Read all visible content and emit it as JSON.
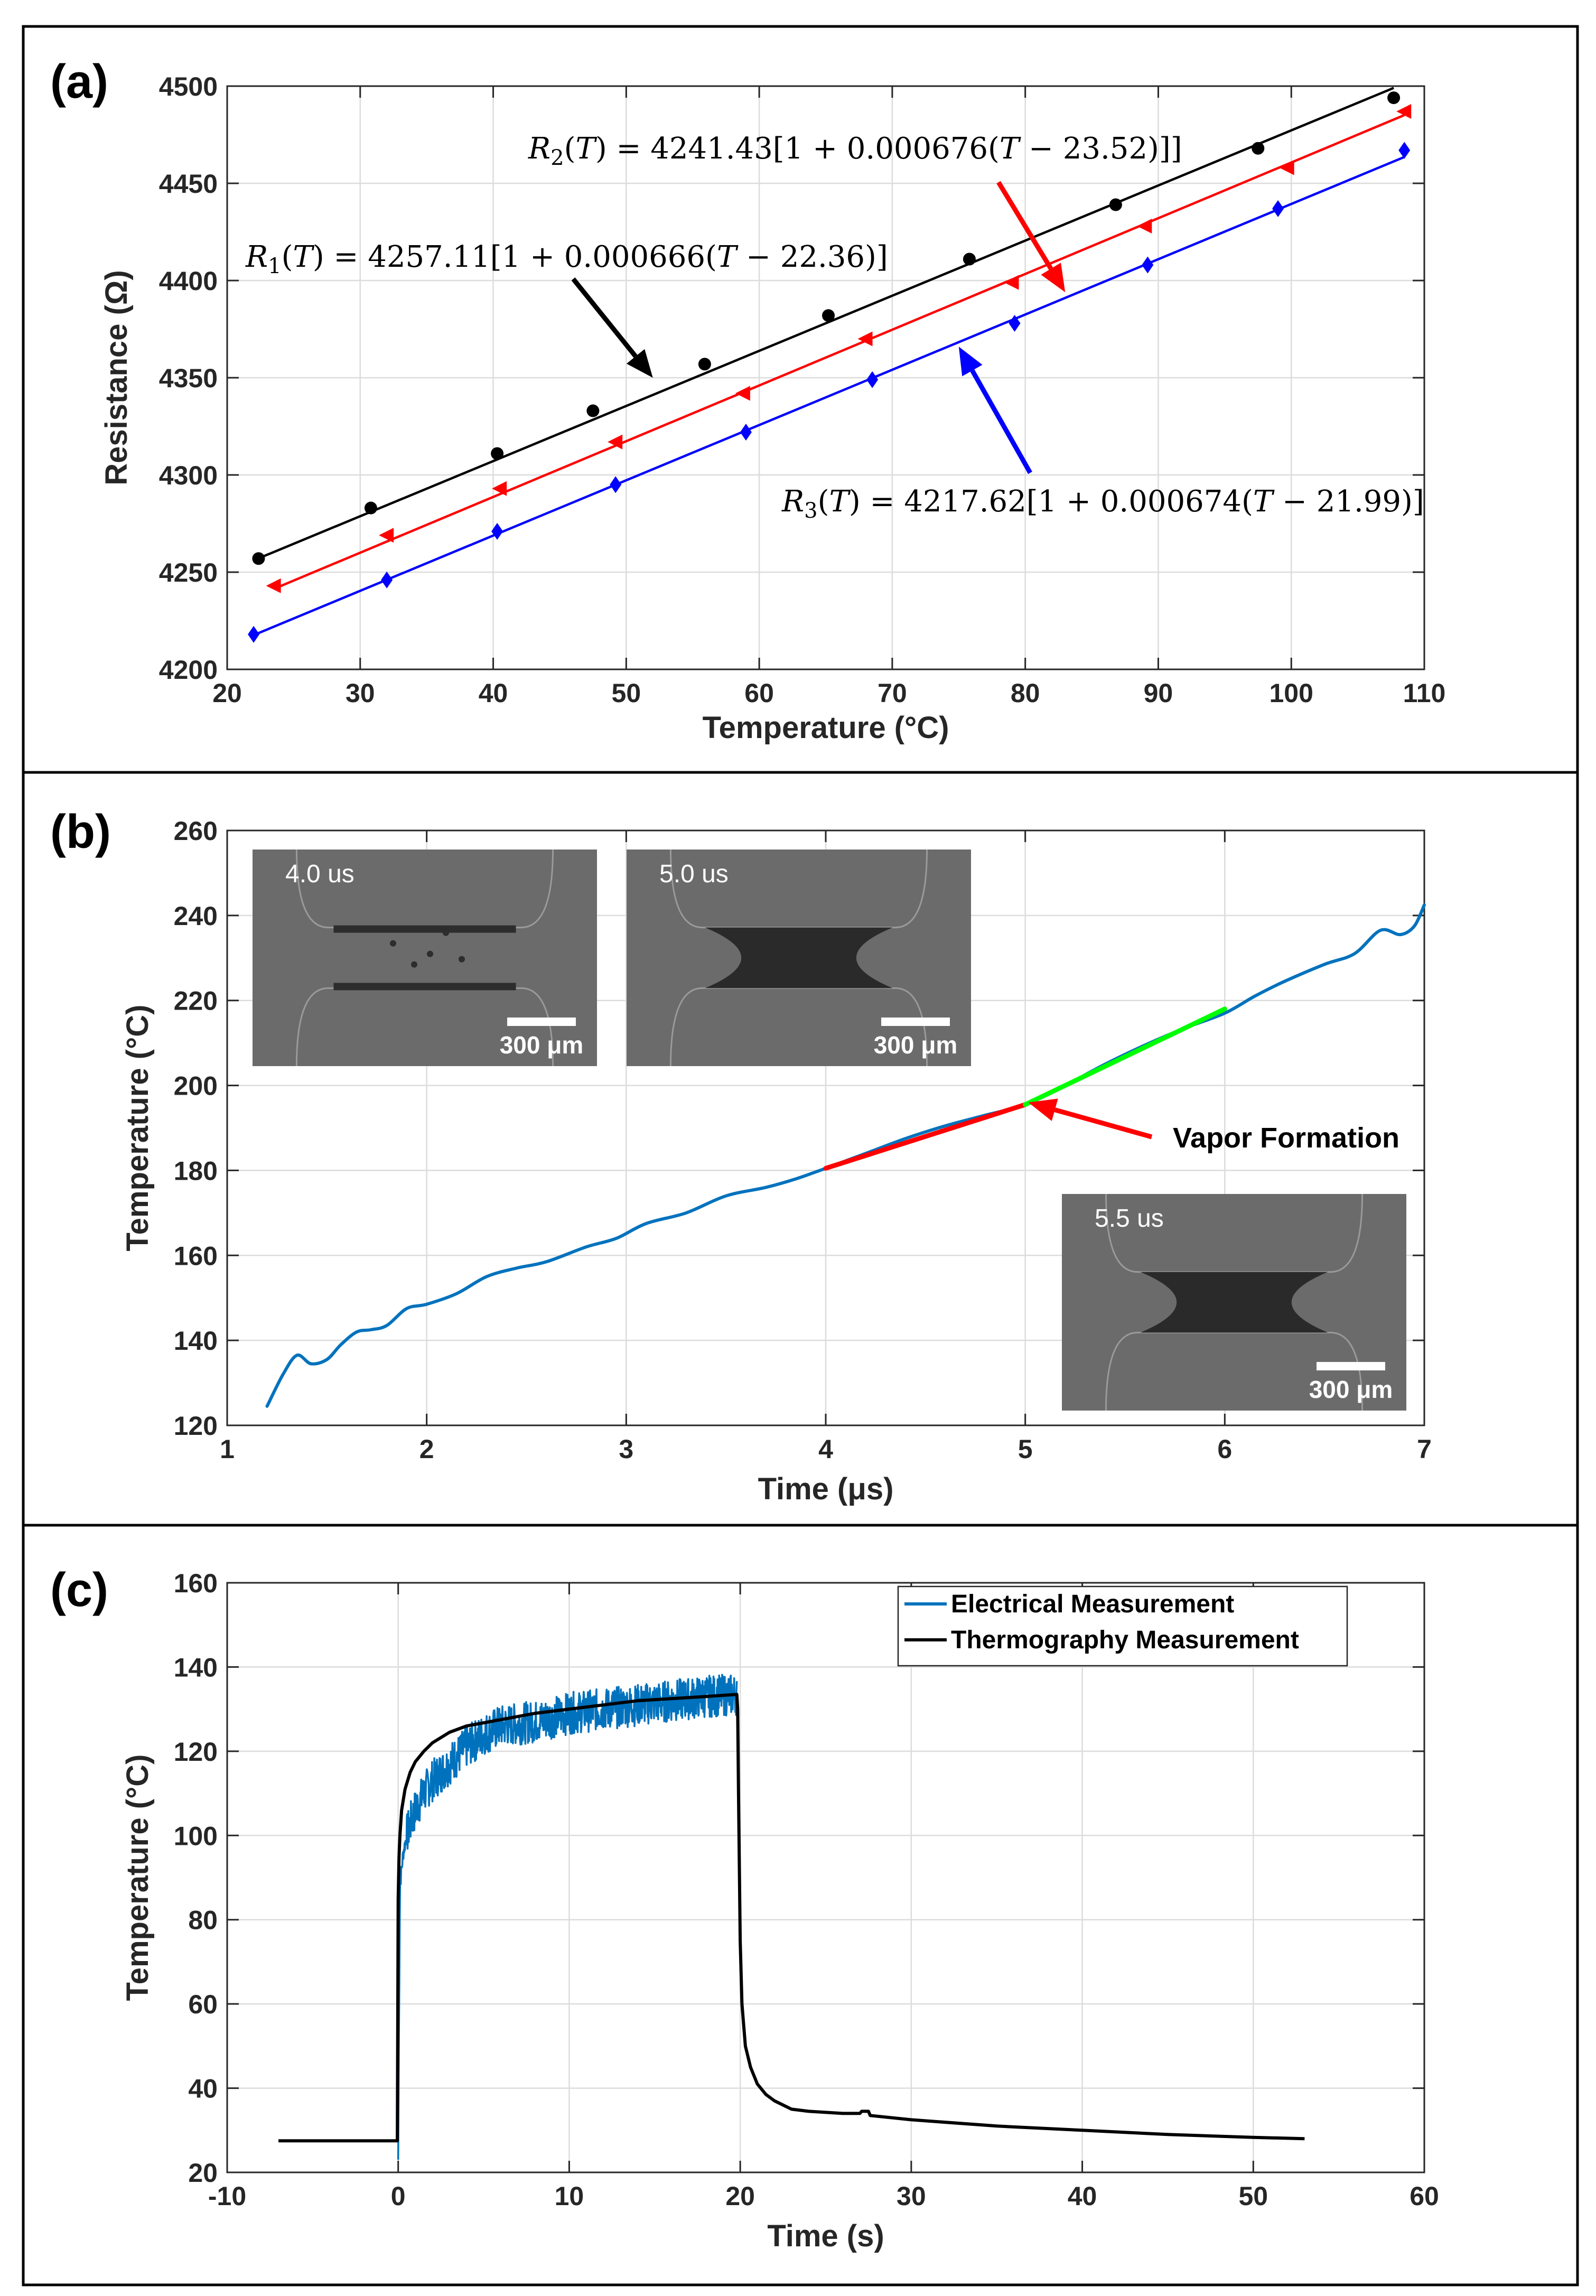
{
  "chart_data": [
    {
      "panel_label": "(a)",
      "type": "scatter",
      "xlabel": "Temperature (°C)",
      "ylabel": "Resistance (Ω)",
      "xlim": [
        20,
        110
      ],
      "ylim": [
        4200,
        4500
      ],
      "xticks": [
        20,
        30,
        40,
        50,
        60,
        70,
        80,
        90,
        100,
        110
      ],
      "yticks": [
        4200,
        4250,
        4300,
        4350,
        4400,
        4450,
        4500
      ],
      "grid": true,
      "series": [
        {
          "marker": "circle",
          "color": "#000000",
          "x": [
            22.36,
            30.8,
            40.3,
            47.5,
            55.9,
            65.2,
            75.8,
            86.8,
            97.5,
            107.7
          ],
          "y": [
            4257,
            4283,
            4311,
            4333,
            4357,
            4382,
            4411,
            4439,
            4468,
            4494
          ],
          "fit": {
            "a": 4257.11,
            "b": 0.000666,
            "t0": 22.36,
            "x_range": [
              22.36,
              107.7
            ]
          }
        },
        {
          "marker": "triangle-left",
          "color": "#ff0000",
          "x": [
            23.52,
            32.0,
            40.5,
            49.2,
            58.8,
            68.0,
            79.0,
            89.0,
            99.7,
            108.5
          ],
          "y": [
            4243,
            4269,
            4293,
            4317,
            4342,
            4370,
            4399,
            4428,
            4458,
            4487
          ],
          "fit": {
            "a": 4241.43,
            "b": 0.000676,
            "t0": 23.52,
            "x_range": [
              23.52,
              108.5
            ]
          }
        },
        {
          "marker": "diamond",
          "color": "#0000ff",
          "x": [
            21.99,
            32.0,
            40.3,
            49.2,
            59.0,
            68.5,
            79.2,
            89.2,
            99.0,
            108.5
          ],
          "y": [
            4218,
            4246,
            4271,
            4295,
            4322,
            4349,
            4378,
            4408,
            4437,
            4467
          ],
          "fit": {
            "a": 4217.62,
            "b": 0.000674,
            "t0": 21.99,
            "x_range": [
              21.99,
              108.5
            ]
          }
        }
      ],
      "annotations": [
        {
          "id": "r1",
          "color": "#000000",
          "parts": [
            "R",
            "1",
            "(",
            "T",
            ") = 4257.11[1 + 0.000666(",
            "T",
            " − 22.36)]"
          ],
          "points_to": [
            52,
            4350
          ]
        },
        {
          "id": "r2",
          "color": "#ff0000",
          "parts": [
            "R",
            "2",
            "(",
            "T",
            ") = 4241.43[1 + 0.000676(",
            "T",
            " − 23.52)]]"
          ],
          "points_to": [
            83,
            4394
          ]
        },
        {
          "id": "r3",
          "color": "#0000ff",
          "parts": [
            "R",
            "3",
            "(",
            "T",
            ") = 4217.62[1 + 0.000674(",
            "T",
            " − 21.99)]"
          ],
          "points_to": [
            75,
            4366
          ]
        }
      ]
    },
    {
      "panel_label": "(b)",
      "type": "line",
      "xlabel": "Time (μs)",
      "ylabel": "Temperature (°C)",
      "xlim": [
        1,
        7
      ],
      "ylim": [
        120,
        260
      ],
      "xticks": [
        1,
        2,
        3,
        4,
        5,
        6,
        7
      ],
      "yticks": [
        120,
        140,
        160,
        180,
        200,
        220,
        240,
        260
      ],
      "grid": true,
      "series": [
        {
          "color": "#0072bd",
          "x": [
            1.2,
            1.28,
            1.35,
            1.42,
            1.5,
            1.57,
            1.65,
            1.72,
            1.8,
            1.9,
            2.0,
            2.15,
            2.3,
            2.45,
            2.6,
            2.8,
            2.95,
            3.1,
            3.3,
            3.5,
            3.7,
            3.85,
            4.0,
            4.2,
            4.4,
            4.6,
            4.8,
            5.0,
            5.2,
            5.4,
            5.6,
            5.8,
            6.0,
            6.15,
            6.3,
            6.5,
            6.65,
            6.78,
            6.88,
            6.95,
            7.0
          ],
          "y": [
            124.5,
            132,
            136.5,
            134.5,
            135.5,
            139,
            142,
            142.5,
            143.5,
            147.5,
            148.5,
            151,
            155,
            157,
            158.5,
            162,
            164,
            167.5,
            170,
            174,
            176,
            178,
            180.5,
            184,
            187.5,
            190.5,
            193,
            195.5,
            200,
            205,
            209.5,
            213.5,
            217,
            221,
            224.5,
            228.5,
            231,
            236.5,
            235.5,
            237.5,
            242.5
          ]
        },
        {
          "color": "#ff0000",
          "x": [
            4.0,
            5.0
          ],
          "y": [
            180.5,
            195.5
          ]
        },
        {
          "color": "#00ff00",
          "x": [
            5.0,
            6.0
          ],
          "y": [
            195.5,
            218
          ]
        }
      ],
      "annotations": [
        {
          "text": "Vapor Formation",
          "points_to": [
            5.0,
            196
          ]
        }
      ],
      "insets": [
        {
          "time": "4.0 us",
          "scale": "300 μm"
        },
        {
          "time": "5.0 us",
          "scale": "300 μm"
        },
        {
          "time": "5.5 us",
          "scale": "300 μm"
        }
      ]
    },
    {
      "panel_label": "(c)",
      "type": "line",
      "xlabel": "Time (s)",
      "ylabel": "Temperature (°C)",
      "xlim": [
        -10,
        60
      ],
      "ylim": [
        20,
        160
      ],
      "xticks": [
        -10,
        0,
        10,
        20,
        30,
        40,
        50,
        60
      ],
      "yticks": [
        20,
        40,
        60,
        80,
        100,
        120,
        140,
        160
      ],
      "grid": true,
      "legend_position": "top-right",
      "series": [
        {
          "name": "Electrical Measurement",
          "color": "#0072bd",
          "x": [
            0.0,
            0.1,
            0.2,
            0.3,
            0.5,
            0.8,
            1.0,
            1.5,
            2.0,
            3.0,
            4.0,
            5.0,
            6.0,
            8.0,
            10.0,
            12.0,
            14.0,
            16.0,
            18.0,
            19.8
          ],
          "y": [
            23,
            88,
            92,
            96,
            100,
            104,
            106,
            110,
            113,
            117,
            121,
            124,
            126,
            127,
            129,
            130,
            131,
            132,
            133,
            133.5
          ],
          "noise_amplitude": 5
        },
        {
          "name": "Thermography Measurement",
          "color": "#000000",
          "x": [
            -7,
            -0.05,
            0.0,
            0.05,
            0.1,
            0.2,
            0.4,
            0.7,
            1.0,
            1.5,
            2.0,
            3.0,
            4.0,
            6.0,
            8.0,
            10.0,
            12.0,
            14.0,
            16.0,
            18.0,
            19.8,
            19.85,
            19.9,
            20.0,
            20.1,
            20.3,
            20.6,
            21.0,
            21.5,
            22.0,
            23.0,
            24.0,
            26.0,
            27.0,
            27.1,
            27.5,
            27.6,
            30.0,
            35.0,
            40.0,
            45.0,
            50.0,
            53.0
          ],
          "y": [
            27.5,
            27.5,
            85,
            95,
            100,
            106,
            111,
            115,
            117.5,
            120,
            122,
            124.5,
            126,
            127.5,
            129,
            130,
            131,
            132,
            132.5,
            133,
            133.5,
            130,
            110,
            75,
            60,
            50,
            45,
            41,
            38.5,
            37,
            35,
            34.5,
            34,
            34,
            34.5,
            34.5,
            33.5,
            32.5,
            31,
            30,
            29,
            28.3,
            28
          ]
        }
      ]
    }
  ]
}
